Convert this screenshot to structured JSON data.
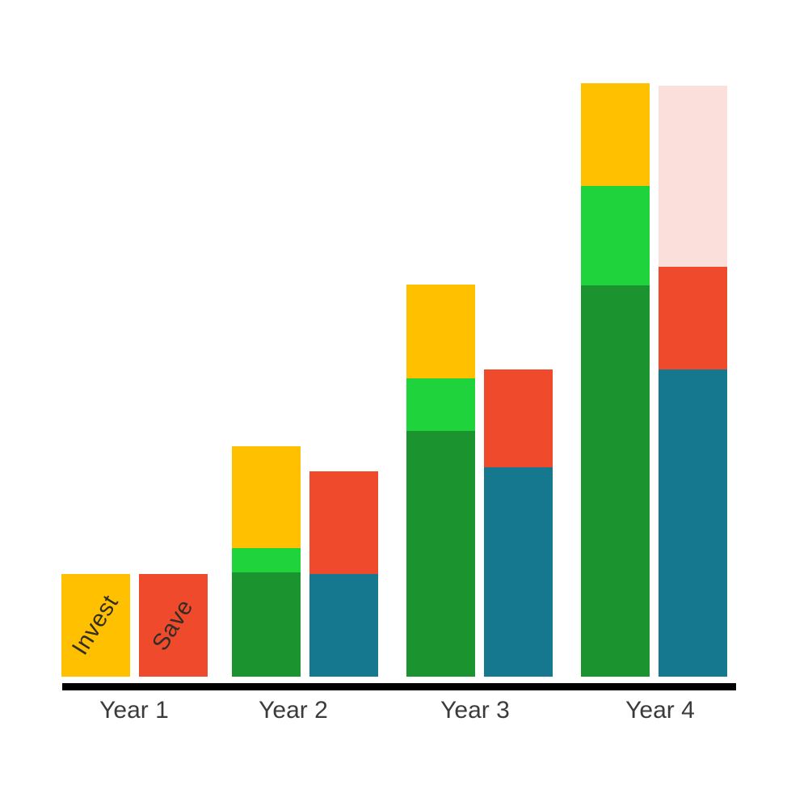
{
  "chart_data": {
    "type": "bar",
    "subtype": "grouped_stacked",
    "title": "",
    "unit": "px",
    "legend_position": "none",
    "axes": {
      "x_ticks": [
        "Year 1",
        "Year 2",
        "Year 3",
        "Year 4"
      ],
      "y_axis_visible": false,
      "gridlines": false,
      "baseline": "thick black horizontal line"
    },
    "categories": [
      "Year 1",
      "Year 2",
      "Year 3",
      "Year 4"
    ],
    "series_labels": {
      "invest": "Invest",
      "save": "Save"
    },
    "groups": [
      {
        "category": "Year 1",
        "invest": {
          "label": "Invest",
          "segments": [
            {
              "name": "gold",
              "value": 127
            }
          ]
        },
        "save": {
          "label": "Save",
          "segments": [
            {
              "name": "red",
              "value": 127
            }
          ]
        }
      },
      {
        "category": "Year 2",
        "invest": {
          "label": "",
          "segments": [
            {
              "name": "dark-green",
              "value": 129
            },
            {
              "name": "bright-green",
              "value": 30
            },
            {
              "name": "gold",
              "value": 126
            }
          ]
        },
        "save": {
          "label": "",
          "segments": [
            {
              "name": "teal",
              "value": 127
            },
            {
              "name": "red",
              "value": 127
            }
          ]
        }
      },
      {
        "category": "Year 3",
        "invest": {
          "label": "",
          "segments": [
            {
              "name": "dark-green",
              "value": 304
            },
            {
              "name": "bright-green",
              "value": 65
            },
            {
              "name": "gold",
              "value": 116
            }
          ]
        },
        "save": {
          "label": "",
          "segments": [
            {
              "name": "teal",
              "value": 259
            },
            {
              "name": "red",
              "value": 121
            }
          ]
        }
      },
      {
        "category": "Year 4",
        "invest": {
          "label": "",
          "segments": [
            {
              "name": "dark-green",
              "value": 484
            },
            {
              "name": "bright-green",
              "value": 123
            },
            {
              "name": "gold",
              "value": 127
            }
          ]
        },
        "save": {
          "label": "",
          "segments": [
            {
              "name": "teal",
              "value": 380
            },
            {
              "name": "red",
              "value": 127
            },
            {
              "name": "pink",
              "value": 224
            }
          ]
        }
      }
    ],
    "colors": {
      "gold": "#FFC000",
      "bright-green": "#1FD33C",
      "dark-green": "#1B9430",
      "red": "#EF4A2B",
      "teal": "#16788E",
      "pink": "#FBDFDA",
      "axis": "#000000",
      "category_label": "#3B3B3B",
      "bar_label_text": "#322D26",
      "background": "#FFFFFF"
    }
  }
}
